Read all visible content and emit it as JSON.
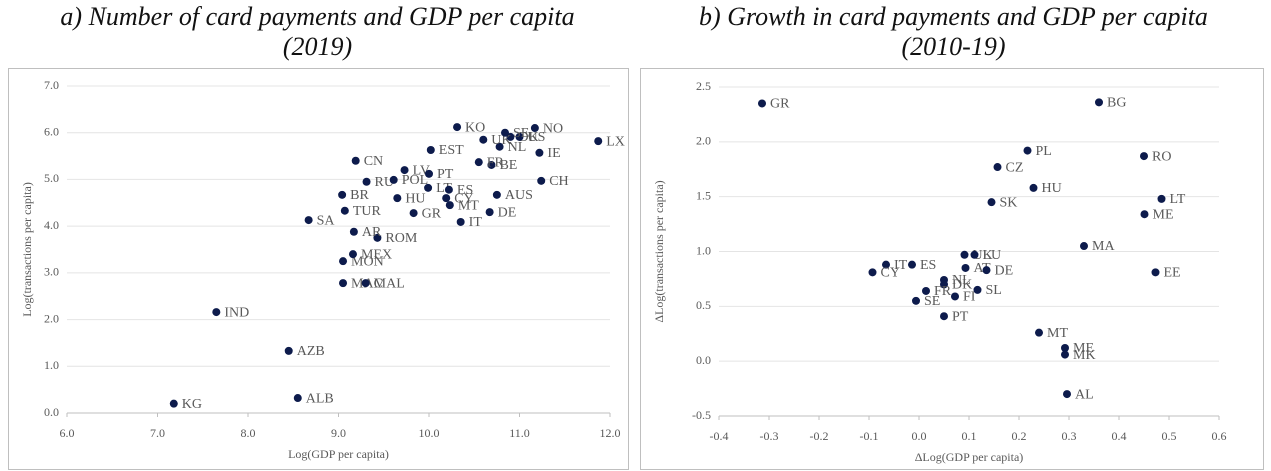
{
  "chart_data": [
    {
      "type": "scatter",
      "title": "a) Number of card payments and GDP per capita (2019)",
      "x_label": "Log(GDP per capita)",
      "y_label": "Log(transactions per capita)",
      "color": "#0d1b4c",
      "grid": true,
      "xlim": [
        6,
        12
      ],
      "ylim": [
        0,
        7
      ],
      "xticks": [
        {
          "value": 6,
          "label": "6.0"
        },
        {
          "value": 7,
          "label": "7.0"
        },
        {
          "value": 8,
          "label": "8.0"
        },
        {
          "value": 9,
          "label": "9.0"
        },
        {
          "value": 10,
          "label": "10.0"
        },
        {
          "value": 11,
          "label": "11.0"
        },
        {
          "value": 12,
          "label": "12.0"
        }
      ],
      "yticks": [
        {
          "value": 0,
          "label": "0.0"
        },
        {
          "value": 1,
          "label": "1.0"
        },
        {
          "value": 2,
          "label": "2.0"
        },
        {
          "value": 3,
          "label": "3.0"
        },
        {
          "value": 4,
          "label": "4.0"
        },
        {
          "value": 5,
          "label": "5.0"
        },
        {
          "value": 6,
          "label": "6.0"
        },
        {
          "value": 7,
          "label": "7.0"
        }
      ],
      "labels": [
        "KG",
        "IND",
        "AZB",
        "ALB",
        "SA",
        "MAC",
        "MAL",
        "MON",
        "MEX",
        "ROM",
        "AR",
        "TUR",
        "BR",
        "CN",
        "RU",
        "POL",
        "LV",
        "HU",
        "LT",
        "PT",
        "EST",
        "GR",
        "ES",
        "CY",
        "MT",
        "IT",
        "KO",
        "DE",
        "AUS",
        "CH",
        "BE",
        "FR",
        "IE",
        "LX",
        "NO",
        "NL",
        "DK",
        "US",
        "UK",
        "SE"
      ],
      "x": [
        7.18,
        7.65,
        8.45,
        8.55,
        8.67,
        9.05,
        9.3,
        9.05,
        9.16,
        9.43,
        9.17,
        9.07,
        9.04,
        9.19,
        9.31,
        9.61,
        9.73,
        9.65,
        9.99,
        10.0,
        10.02,
        9.83,
        10.22,
        10.19,
        10.23,
        10.35,
        10.31,
        10.67,
        10.75,
        11.24,
        10.69,
        10.55,
        11.22,
        11.87,
        11.17,
        10.78,
        10.9,
        11.0,
        10.6,
        10.84
      ],
      "values": [
        0.2,
        2.16,
        1.33,
        0.32,
        4.13,
        2.78,
        2.78,
        3.25,
        3.4,
        3.75,
        3.88,
        4.33,
        4.67,
        5.4,
        4.95,
        4.99,
        5.2,
        4.6,
        4.82,
        5.12,
        5.63,
        4.28,
        4.78,
        4.6,
        4.45,
        4.09,
        6.12,
        4.3,
        4.67,
        4.97,
        5.31,
        5.37,
        5.57,
        5.82,
        6.1,
        5.7,
        5.91,
        5.91,
        5.85,
        6.0
      ]
    },
    {
      "type": "scatter",
      "title": "b) Growth in card payments and GDP per capita (2010-19)",
      "x_label": "ΔLog(GDP per capita)",
      "y_label": "ΔLog(transactions per capita)",
      "color": "#0d1b4c",
      "grid": true,
      "xlim": [
        -0.4,
        0.6
      ],
      "ylim": [
        -0.5,
        2.5
      ],
      "xticks": [
        -0.4,
        -0.3,
        -0.2,
        -0.1,
        {
          "value": 0,
          "label": "0.0"
        },
        0.1,
        0.2,
        0.3,
        0.4,
        0.5,
        0.6
      ],
      "yticks": [
        -0.5,
        {
          "value": 0,
          "label": "0.0"
        },
        0.5,
        {
          "value": 1,
          "label": "1.0"
        },
        1.5,
        {
          "value": 2,
          "label": "2.0"
        },
        2.5
      ],
      "labels": [
        "GR",
        "BG",
        "RO",
        "PL",
        "CZ",
        "HU",
        "SK",
        "LT",
        "ME",
        "MA",
        "EE",
        "IT",
        "ES",
        "CY",
        "UK",
        "LU",
        "AT",
        "DE",
        "NL",
        "DK",
        "FR",
        "FI",
        "SL",
        "SE",
        "PT",
        "MT",
        "ME",
        "MK",
        "AL"
      ],
      "x": [
        -0.314,
        0.36,
        0.45,
        0.217,
        0.157,
        0.229,
        0.145,
        0.485,
        0.451,
        0.33,
        0.473,
        -0.066,
        -0.014,
        -0.093,
        0.091,
        0.111,
        0.093,
        0.135,
        0.05,
        0.05,
        0.014,
        0.072,
        0.117,
        -0.006,
        0.05,
        0.24,
        0.292,
        0.292,
        0.296
      ],
      "values": [
        2.35,
        2.36,
        1.87,
        1.92,
        1.77,
        1.58,
        1.45,
        1.48,
        1.34,
        1.05,
        0.81,
        0.88,
        0.88,
        0.81,
        0.97,
        0.97,
        0.85,
        0.83,
        0.74,
        0.7,
        0.64,
        0.59,
        0.65,
        0.55,
        0.41,
        0.26,
        0.12,
        0.06,
        -0.3
      ]
    }
  ]
}
